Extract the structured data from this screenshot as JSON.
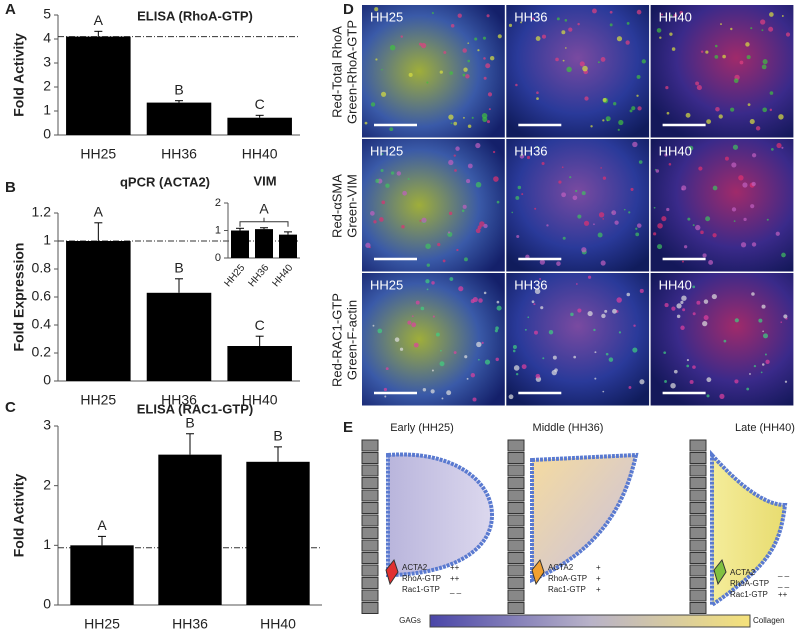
{
  "chart_data": [
    {
      "type": "bar",
      "panel_label": "A",
      "title": "ELISA (RhoA-GTP)",
      "y_label": "Fold Activity",
      "categories": [
        "HH25",
        "HH36",
        "HH40"
      ],
      "values": [
        4.1,
        1.35,
        0.72
      ],
      "errors": [
        0.22,
        0.08,
        0.1
      ],
      "annotations": [
        "A",
        "B",
        "C"
      ],
      "reference_line": 4.1,
      "color": "#000000",
      "ylim": [
        0,
        5
      ],
      "yticks": [
        0,
        1,
        2,
        3,
        4,
        5
      ]
    },
    {
      "type": "bar",
      "panel_label": "B",
      "title": "qPCR (ACTA2)",
      "y_label": "Fold Expression",
      "categories": [
        "HH25",
        "HH36",
        "HH40"
      ],
      "values": [
        1,
        0.63,
        0.25
      ],
      "errors": [
        0.13,
        0.1,
        0.07
      ],
      "annotations": [
        "A",
        "B",
        "C"
      ],
      "reference_line": 1,
      "color": "#000000",
      "ylim": [
        0,
        1.2
      ],
      "yticks": [
        0,
        0.2,
        0.4,
        0.6,
        0.8,
        1,
        1.2
      ]
    },
    {
      "type": "bar",
      "title": "VIM",
      "categories": [
        "HH25",
        "HH36",
        "HH40"
      ],
      "values": [
        1,
        1.05,
        0.85
      ],
      "errors": [
        0.08,
        0.05,
        0.1
      ],
      "annotations": [
        "A"
      ],
      "color": "#000000",
      "ylim": [
        0,
        2
      ],
      "yticks": [
        0,
        1,
        2
      ]
    },
    {
      "type": "bar",
      "panel_label": "C",
      "title": "ELISA (RAC1-GTP)",
      "y_label": "Fold Activity",
      "categories": [
        "HH25",
        "HH36",
        "HH40"
      ],
      "values": [
        1,
        2.52,
        2.4
      ],
      "errors": [
        0.15,
        0.35,
        0.25
      ],
      "annotations": [
        "A",
        "B",
        "B"
      ],
      "reference_line": 0.96,
      "color": "#000000",
      "ylim": [
        0,
        3
      ],
      "yticks": [
        0,
        1,
        2,
        3
      ]
    }
  ],
  "panel_d": {
    "label": "D",
    "rows": [
      {
        "stain_labels": [
          "Red-Total RhoA",
          "Green-RhoA-GTP"
        ],
        "stages": [
          "HH25",
          "HH36",
          "HH40"
        ]
      },
      {
        "stain_labels": [
          "Red-αSMA",
          "Green-VIM"
        ],
        "stages": [
          "HH25",
          "HH36",
          "HH40"
        ]
      },
      {
        "stain_labels": [
          "Red-RAC1-GTP",
          "Green-F-actin"
        ],
        "stages": [
          "HH25",
          "HH36",
          "HH40"
        ]
      }
    ]
  },
  "panel_e": {
    "label": "E",
    "stages": [
      {
        "title": "Early (HH25)",
        "markers": [
          [
            "ACTA2",
            "++"
          ],
          [
            "RhoA-GTP",
            "++"
          ],
          [
            "Rac1-GTP",
            "_ _"
          ]
        ]
      },
      {
        "title": "Middle (HH36)",
        "markers": [
          [
            "ACTA2",
            "+"
          ],
          [
            "RhoA-GTP",
            "+"
          ],
          [
            "Rac1-GTP",
            "+"
          ]
        ]
      },
      {
        "title": "Late (HH40)",
        "markers": [
          [
            "ACTA2",
            "_ _"
          ],
          [
            "RhoA-GTP",
            "_ _"
          ],
          [
            "Rac1-GTP",
            "++"
          ]
        ]
      }
    ],
    "gradient_labels": [
      "GAGs",
      "Collagen"
    ]
  }
}
